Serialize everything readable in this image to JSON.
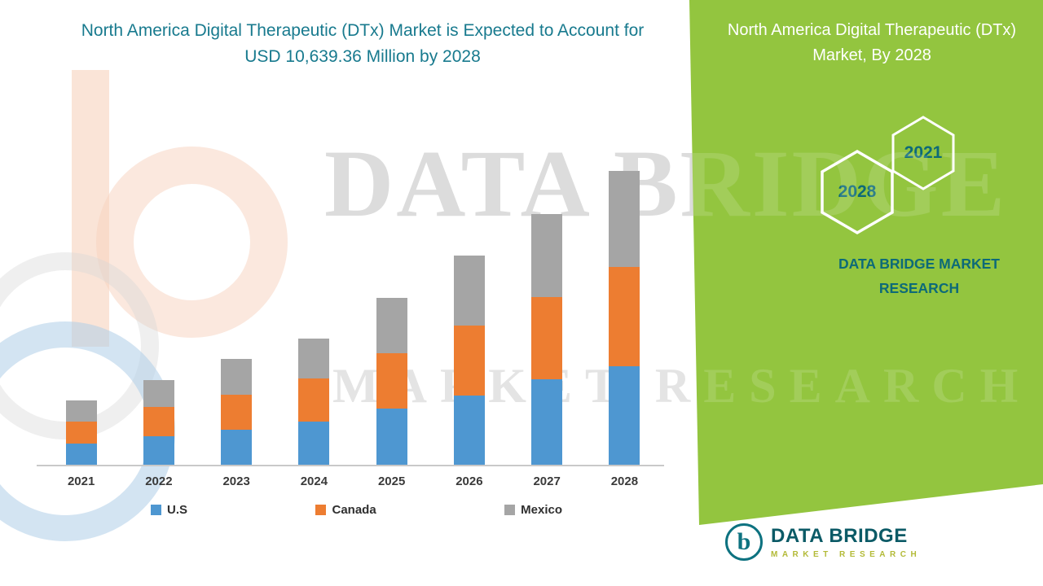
{
  "header": {
    "title": "North America Digital Therapeutic (DTx) Market is Expected to Account for USD 10,639.36 Million by 2028",
    "title_color": "#187a8e"
  },
  "watermark": {
    "line1": "DATA BRIDGE",
    "line2": "MARKET RESEARCH"
  },
  "panel": {
    "heading": "North America Digital Therapeutic (DTx) Market, By 2028",
    "hexagons": [
      {
        "year": "2028"
      },
      {
        "year": "2021"
      }
    ],
    "brand_text": "DATA BRIDGE MARKET RESEARCH",
    "background_color": "#93c53f",
    "heading_color": "#ffffff",
    "hex_year_color": "#0d6a78"
  },
  "footer_logo": {
    "monogram": "b",
    "name": "DATA BRIDGE",
    "subtitle": "MARKET RESEARCH",
    "name_color": "#0b5a66",
    "subtitle_color": "#b3ba37"
  },
  "chart_data": {
    "type": "bar",
    "stacked": true,
    "title": "North America Digital Therapeutic (DTx) Market is Expected to Account for USD 10,639.36 Million by 2028",
    "unit": "USD Million",
    "categories": [
      "2021",
      "2022",
      "2023",
      "2024",
      "2025",
      "2026",
      "2027",
      "2028"
    ],
    "series": [
      {
        "name": "U.S",
        "color": "#4e97d1",
        "values": [
          790,
          1060,
          1290,
          1590,
          2060,
          2530,
          3120,
          3590
        ]
      },
      {
        "name": "Canada",
        "color": "#ed7d31",
        "values": [
          790,
          1060,
          1260,
          1560,
          2000,
          2530,
          2970,
          3580
        ]
      },
      {
        "name": "Mexico",
        "color": "#a5a5a5",
        "values": [
          770,
          970,
          1290,
          1440,
          2000,
          2530,
          3000,
          3470
        ]
      }
    ],
    "labeled_total_2028": 10639.36,
    "ylim": [
      0,
      11000
    ],
    "axes_visible": false,
    "gridlines": false,
    "legend_position": "bottom",
    "note": "Series values estimated from bar heights; only the 2028 total (USD 10,639.36 Million) is labeled in the title."
  }
}
